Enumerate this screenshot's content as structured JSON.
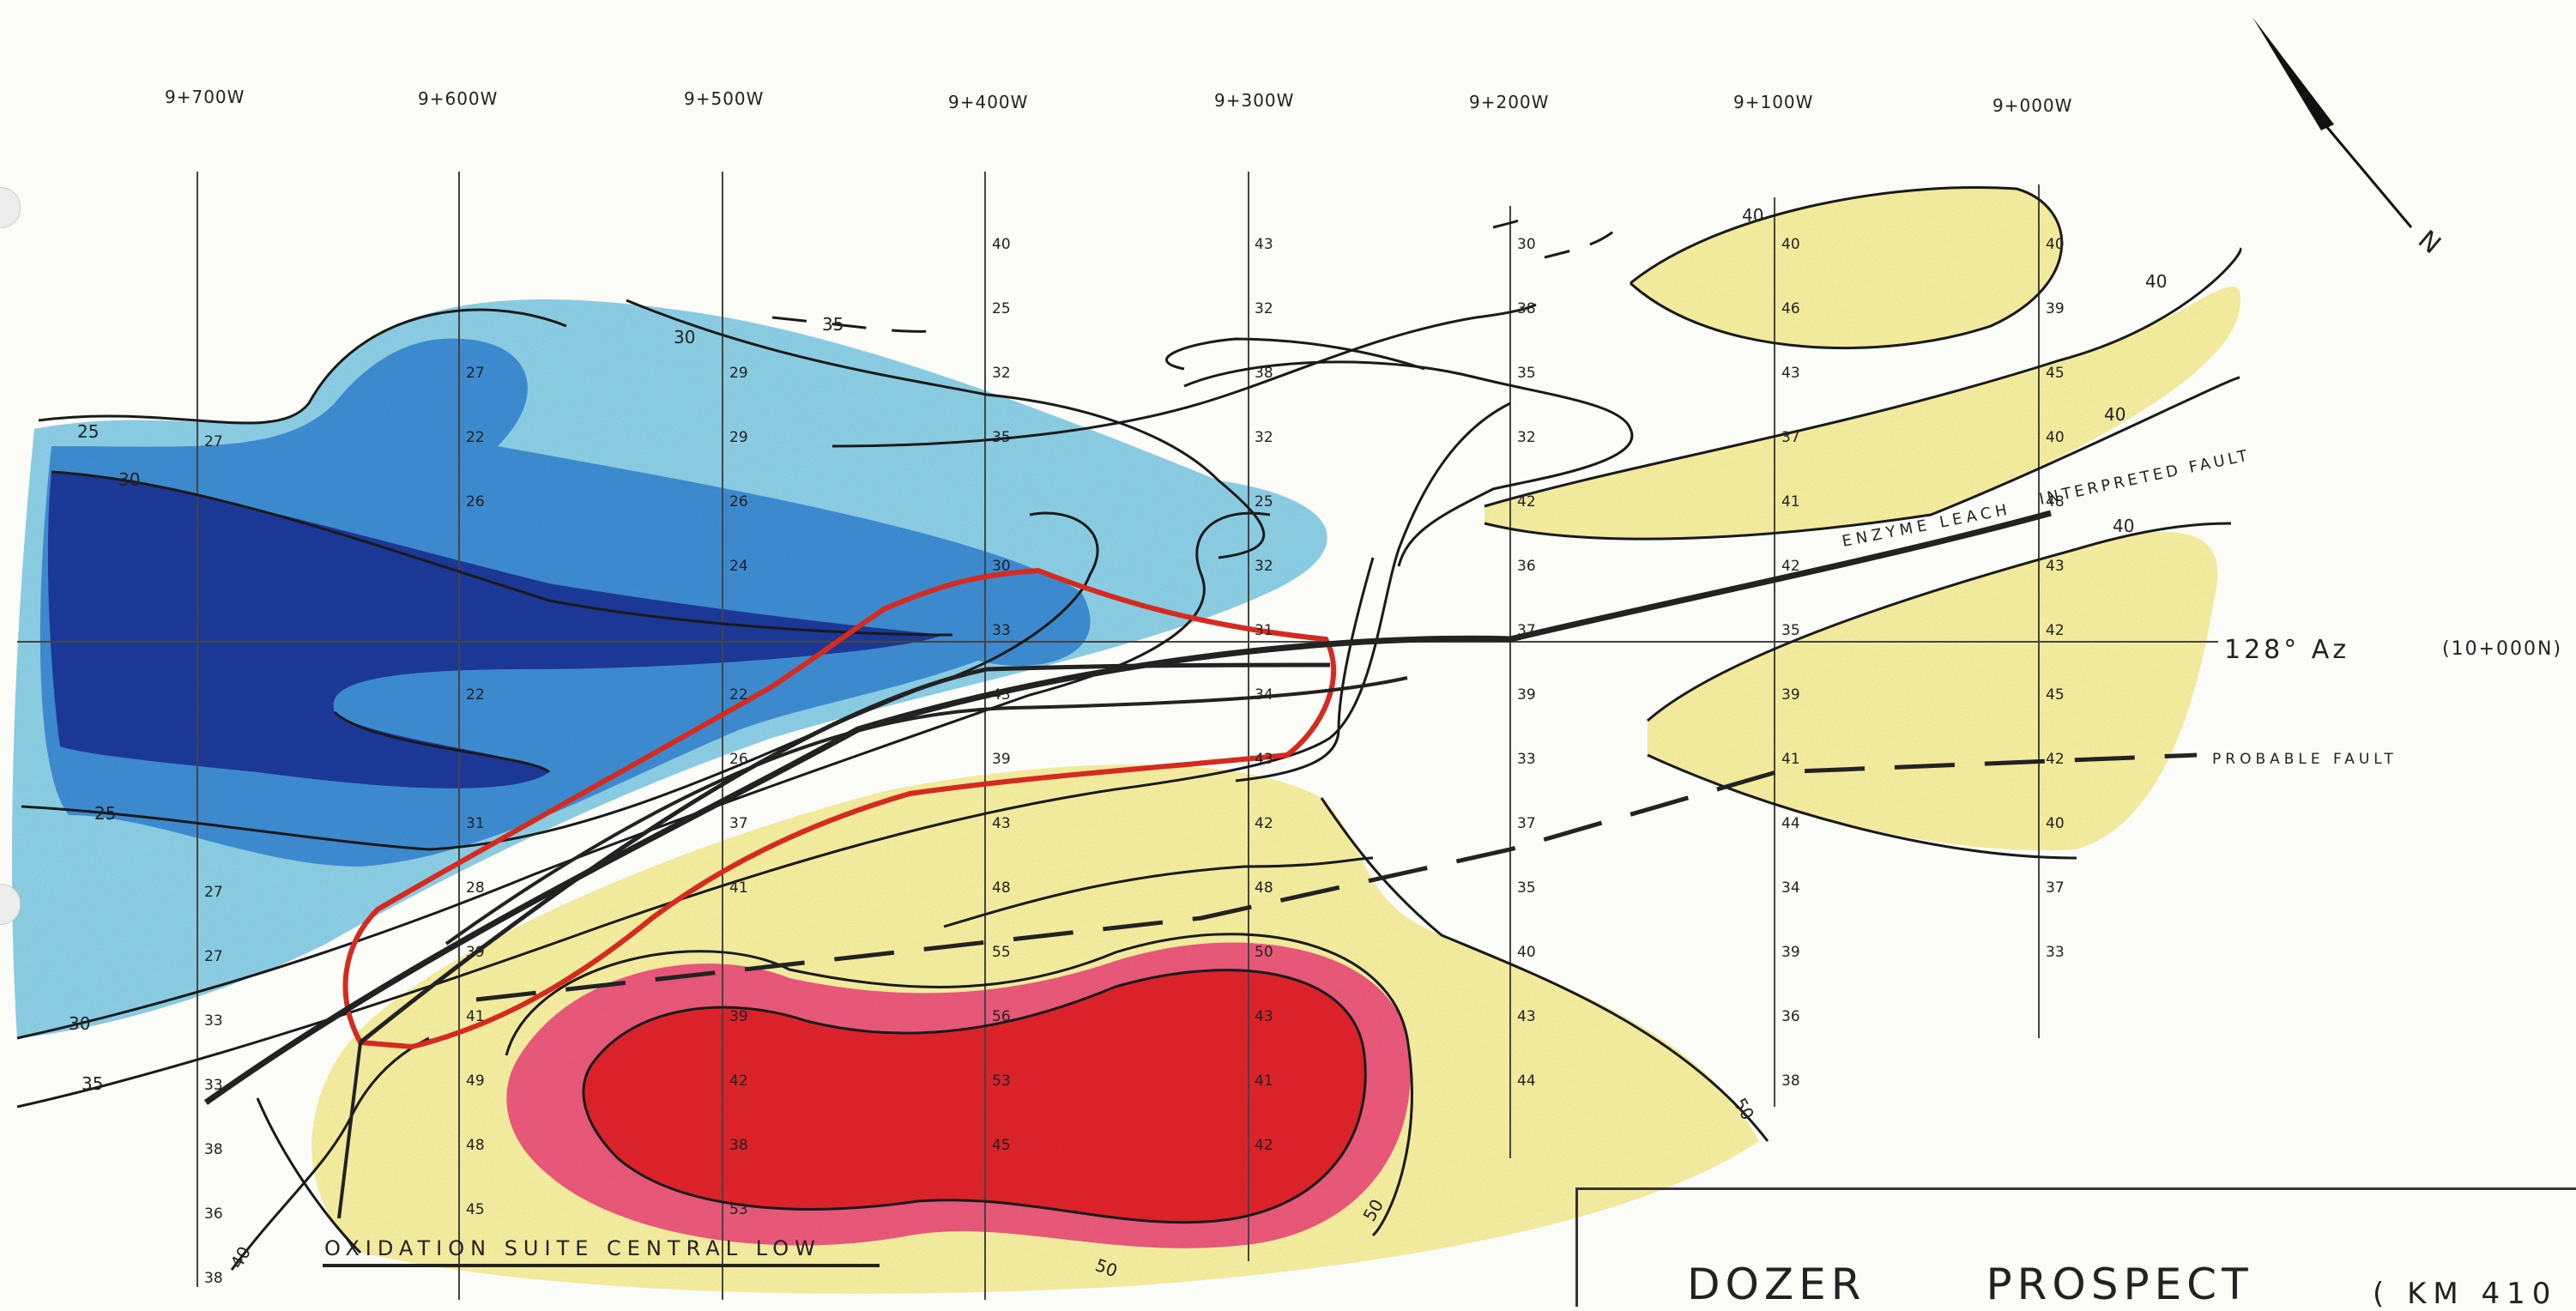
{
  "map": {
    "grid_lines": [
      "9+700W",
      "9+600W",
      "9+500W",
      "9+400W",
      "9+300W",
      "9+200W",
      "9+100W",
      "9+000W"
    ],
    "baseline_label": "128° Az",
    "baseline_station": "(10+000N)",
    "north_label": "N",
    "fault_interpreted_label_1": "ENZYME LEACH",
    "fault_interpreted_label_2": "INTERPRETED FAULT",
    "fault_probable_label": "PROBABLE FAULT",
    "zone_label": "OXIDATION SUITE CENTRAL LOW",
    "title": {
      "word1": "DOZER",
      "word2": "PROSPECT",
      "sub": "( KM 410"
    },
    "contour_labels": [
      "25",
      "30",
      "35",
      "35",
      "30",
      "25",
      "30",
      "40",
      "40",
      "40",
      "40",
      "50",
      "50",
      "50",
      "40",
      "40",
      "40"
    ],
    "colors": {
      "light_blue": "#8fd3ea",
      "mid_blue": "#3f8fd6",
      "dark_blue": "#1c3a9c",
      "yellow": "#fbf3a3",
      "pink": "#ef5b7d",
      "red": "#e3242b",
      "outline_red": "#d42a1f"
    },
    "columns": [
      {
        "values": [
          "27",
          "",
          "",
          "",
          "",
          "",
          "",
          "27",
          "27",
          "33",
          "33",
          "38",
          "36",
          "38"
        ]
      },
      {
        "values": [
          "27",
          "22",
          "26",
          "",
          "",
          "22",
          "",
          "31",
          "28",
          "39",
          "41",
          "49",
          "48",
          "45"
        ]
      },
      {
        "values": [
          "29",
          "29",
          "26",
          "24",
          "",
          "22",
          "26",
          "37",
          "41",
          "",
          "39",
          "42",
          "38",
          "53"
        ]
      },
      {
        "values": [
          "40",
          "25",
          "32",
          "35",
          "",
          "30",
          "33",
          "43",
          "39",
          "43",
          "48",
          "55",
          "56",
          "53",
          "45"
        ]
      },
      {
        "values": [
          "43",
          "32",
          "38",
          "32",
          "25",
          "32",
          "31",
          "34",
          "43",
          "42",
          "48",
          "50",
          "43",
          "41",
          "42"
        ]
      },
      {
        "values": [
          "30",
          "38",
          "35",
          "32",
          "42",
          "36",
          "37",
          "39",
          "33",
          "37",
          "35",
          "40",
          "43",
          "44"
        ]
      },
      {
        "values": [
          "40",
          "46",
          "43",
          "37",
          "41",
          "42",
          "35",
          "39",
          "41",
          "44",
          "34",
          "39",
          "36",
          "38"
        ]
      },
      {
        "values": [
          "40",
          "39",
          "45",
          "40",
          "48",
          "43",
          "42",
          "45",
          "42",
          "40",
          "37",
          "33"
        ]
      }
    ]
  }
}
